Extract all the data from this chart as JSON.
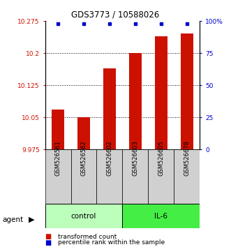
{
  "title": "GDS3773 / 10588026",
  "samples": [
    "GSM526561",
    "GSM526562",
    "GSM526602",
    "GSM526603",
    "GSM526605",
    "GSM526678"
  ],
  "bar_values": [
    10.068,
    10.05,
    10.165,
    10.2,
    10.24,
    10.245
  ],
  "percentile_values": [
    98,
    98,
    98,
    98,
    98,
    98
  ],
  "bar_color": "#cc1100",
  "percentile_color": "#0000cc",
  "ylim_left": [
    9.975,
    10.275
  ],
  "ylim_right": [
    0,
    100
  ],
  "yticks_left": [
    9.975,
    10.05,
    10.125,
    10.2,
    10.275
  ],
  "yticks_right": [
    0,
    25,
    50,
    75,
    100
  ],
  "ytick_labels_left": [
    "9.975",
    "10.05",
    "10.125",
    "10.2",
    "10.275"
  ],
  "ytick_labels_right": [
    "0",
    "25",
    "50",
    "75",
    "100%"
  ],
  "grid_lines": [
    10.05,
    10.125,
    10.2
  ],
  "groups": [
    {
      "label": "control",
      "indices": [
        0,
        1,
        2
      ],
      "color": "#bbffbb"
    },
    {
      "label": "IL-6",
      "indices": [
        3,
        4,
        5
      ],
      "color": "#44ee44"
    }
  ],
  "agent_label": "agent",
  "legend_bar_label": "transformed count",
  "legend_pct_label": "percentile rank within the sample",
  "background_color": "#ffffff",
  "bar_bottom": 9.975,
  "bar_width": 0.5,
  "sample_label_color": "#d0d0d0"
}
